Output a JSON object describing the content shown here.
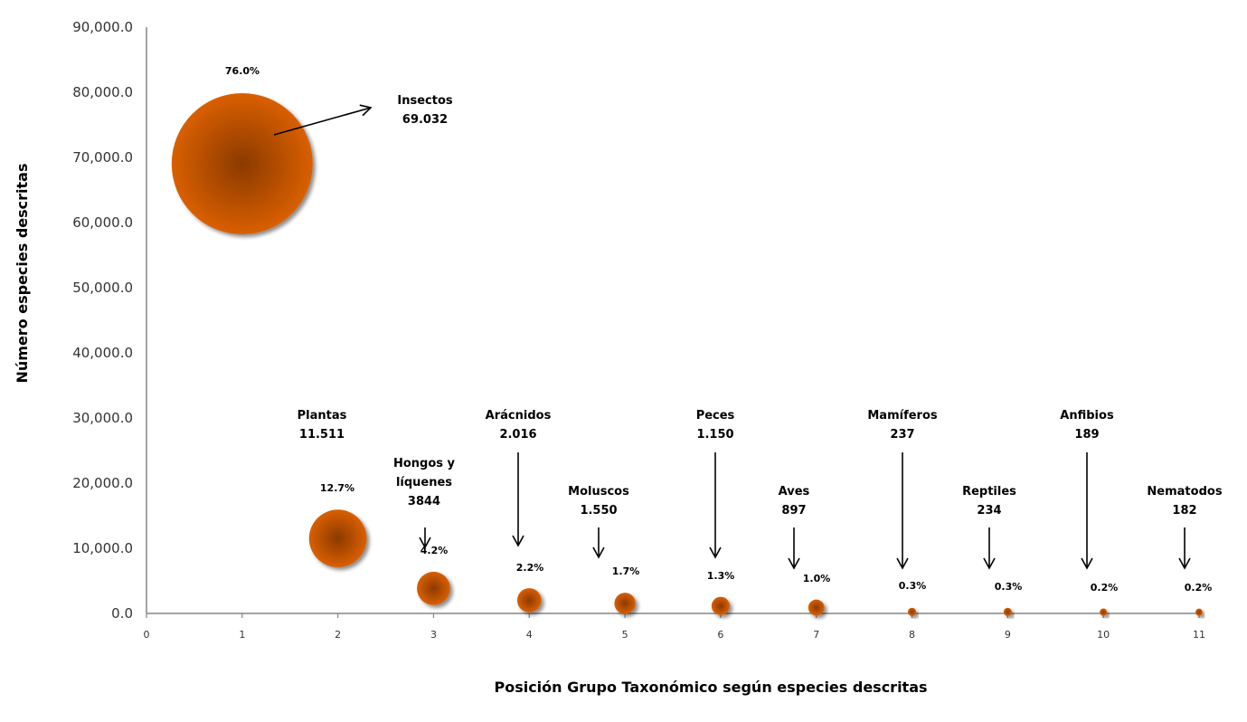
{
  "chart_data": {
    "type": "bubble",
    "title": "",
    "xlabel": "Posición Grupo Taxonómico según especies descritas",
    "ylabel": "Número especies descritas",
    "xlim": [
      0,
      11
    ],
    "ylim": [
      0,
      90000
    ],
    "x_ticks": [
      "0",
      "1",
      "2",
      "3",
      "4",
      "5",
      "6",
      "7",
      "8",
      "9",
      "10",
      "11"
    ],
    "y_ticks": [
      "0.0",
      "10,000.0",
      "20,000.0",
      "30,000.0",
      "40,000.0",
      "50,000.0",
      "60,000.0",
      "70,000.0",
      "80,000.0",
      "90,000.0"
    ],
    "grid": false,
    "bubble_color": "#D95F02",
    "bubble_center_color": "#8B3A00",
    "points": [
      {
        "x": 1,
        "y": 69032,
        "name": "Insectos",
        "value_label": "69.032",
        "pct": "76.0%"
      },
      {
        "x": 2,
        "y": 11511,
        "name": "Plantas",
        "value_label": "11.511",
        "pct": "12.7%"
      },
      {
        "x": 3,
        "y": 3844,
        "name": "Hongos y líquenes",
        "name_lines": [
          "Hongos y",
          "líquenes"
        ],
        "value_label": "3844",
        "pct": "4.2%"
      },
      {
        "x": 4,
        "y": 2016,
        "name": "Arácnidos",
        "value_label": "2.016",
        "pct": "2.2%"
      },
      {
        "x": 5,
        "y": 1550,
        "name": "Moluscos",
        "value_label": "1.550",
        "pct": "1.7%"
      },
      {
        "x": 6,
        "y": 1150,
        "name": "Peces",
        "value_label": "1.150",
        "pct": "1.3%"
      },
      {
        "x": 7,
        "y": 897,
        "name": "Aves",
        "value_label": "897",
        "pct": "1.0%"
      },
      {
        "x": 8,
        "y": 237,
        "name": "Mamíferos",
        "value_label": "237",
        "pct": "0.3%"
      },
      {
        "x": 9,
        "y": 234,
        "name": "Reptiles",
        "value_label": "234",
        "pct": "0.3%"
      },
      {
        "x": 10,
        "y": 189,
        "name": "Anfibios",
        "value_label": "189",
        "pct": "0.2%"
      },
      {
        "x": 11,
        "y": 182,
        "name": "Nematodos",
        "value_label": "182",
        "pct": "0.2%"
      }
    ]
  }
}
